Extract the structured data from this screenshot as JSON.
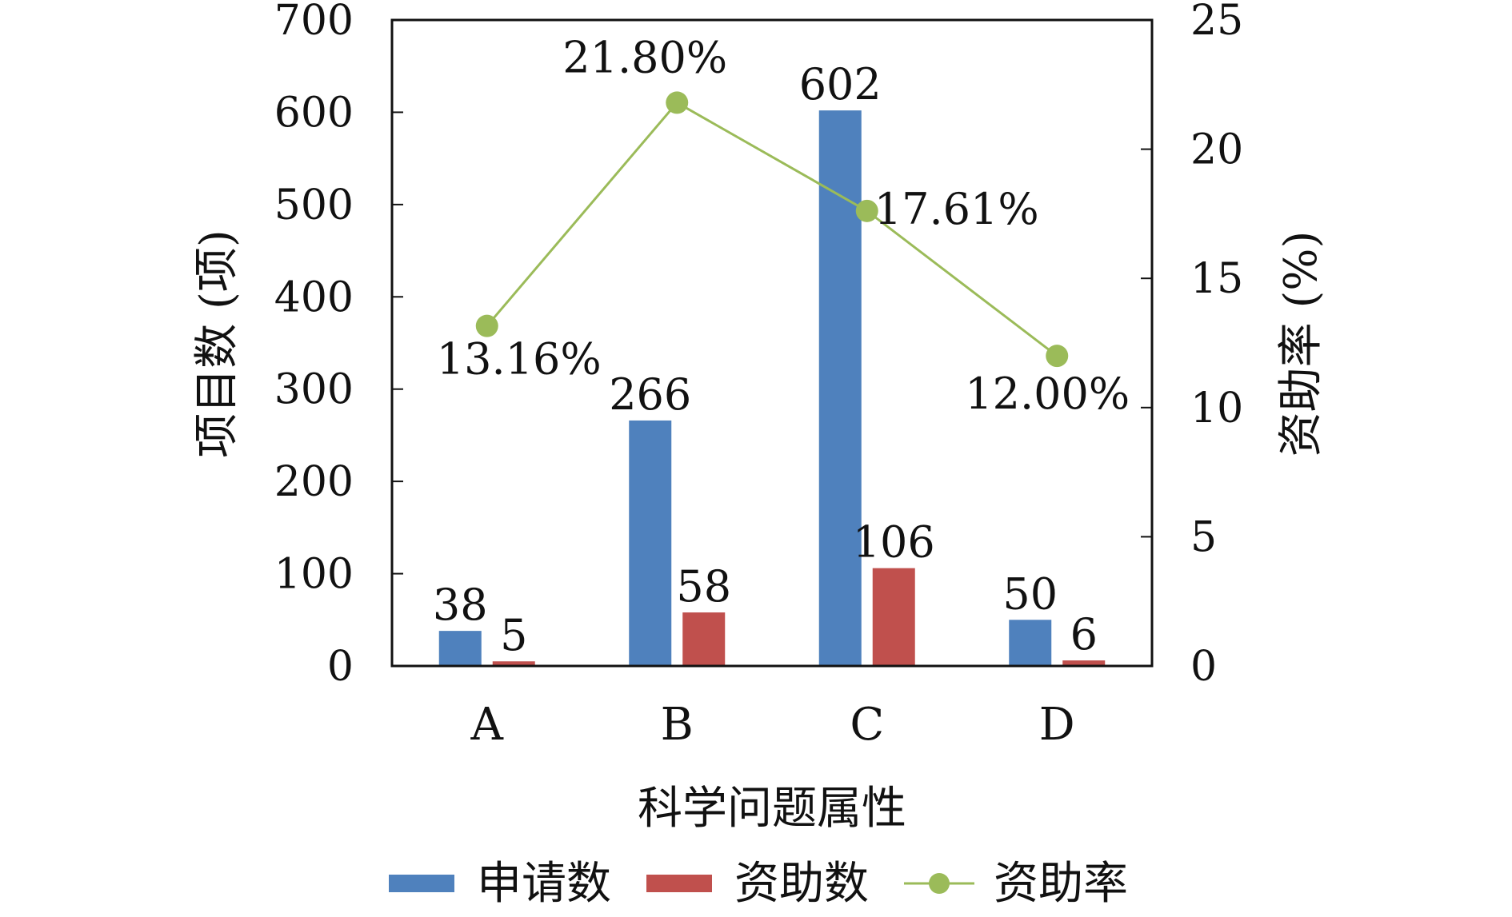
{
  "chart_data": {
    "type": "bar",
    "categories": [
      "A",
      "B",
      "C",
      "D"
    ],
    "series": [
      {
        "name": "申请数",
        "type": "bar",
        "axis": "left",
        "values": [
          38,
          266,
          602,
          50
        ],
        "labels": [
          "38",
          "266",
          "602",
          "50"
        ]
      },
      {
        "name": "资助数",
        "type": "bar",
        "axis": "left",
        "values": [
          5,
          58,
          106,
          6
        ],
        "labels": [
          "5",
          "58",
          "106",
          "6"
        ]
      },
      {
        "name": "资助率",
        "type": "line",
        "axis": "right",
        "values": [
          13.16,
          21.8,
          17.61,
          12.0
        ],
        "labels": [
          "13.16%",
          "21.80%",
          "17.61%",
          "12.00%"
        ]
      }
    ],
    "xlabel": "科学问题属性",
    "ylabel": "项目数 (项)",
    "ylabel_right": "资助率 (%)",
    "ylim": [
      0,
      700
    ],
    "ylim_right": [
      0,
      25
    ],
    "yticks": [
      0,
      100,
      200,
      300,
      400,
      500,
      600,
      700
    ],
    "yticks_right": [
      0,
      5,
      10,
      15,
      20,
      25
    ],
    "legend_position": "bottom",
    "grid": false,
    "colors": {
      "申请数": "#4f81bd",
      "资助数": "#c0504d",
      "资助率": "#9bbb59"
    }
  }
}
